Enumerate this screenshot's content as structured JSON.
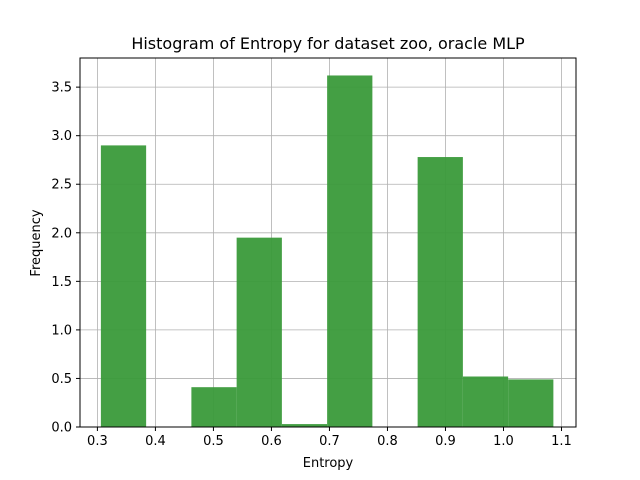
{
  "chart_data": {
    "type": "bar",
    "title": "Histogram of Entropy for dataset zoo, oracle MLP",
    "xlabel": "Entropy",
    "ylabel": "Frequency",
    "xlim": [
      0.27,
      1.125
    ],
    "ylim": [
      0.0,
      3.8
    ],
    "xticks": [
      0.3,
      0.4,
      0.5,
      0.6,
      0.7,
      0.8,
      0.9,
      1.0,
      1.1
    ],
    "xtick_labels": [
      "0.3",
      "0.4",
      "0.5",
      "0.6",
      "0.7",
      "0.8",
      "0.9",
      "1.0",
      "1.1"
    ],
    "yticks": [
      0.0,
      0.5,
      1.0,
      1.5,
      2.0,
      2.5,
      3.0,
      3.5
    ],
    "ytick_labels": [
      "0.0",
      "0.5",
      "1.0",
      "1.5",
      "2.0",
      "2.5",
      "3.0",
      "3.5"
    ],
    "grid": true,
    "bar_color": "#3a9a3a",
    "bins": [
      {
        "x0": 0.306,
        "x1": 0.384,
        "value": 2.9
      },
      {
        "x0": 0.384,
        "x1": 0.462,
        "value": 0.0
      },
      {
        "x0": 0.462,
        "x1": 0.54,
        "value": 0.41
      },
      {
        "x0": 0.54,
        "x1": 0.618,
        "value": 1.95
      },
      {
        "x0": 0.618,
        "x1": 0.696,
        "value": 0.03
      },
      {
        "x0": 0.696,
        "x1": 0.774,
        "value": 3.62
      },
      {
        "x0": 0.774,
        "x1": 0.852,
        "value": 0.0
      },
      {
        "x0": 0.852,
        "x1": 0.93,
        "value": 2.78
      },
      {
        "x0": 0.93,
        "x1": 1.008,
        "value": 0.52
      },
      {
        "x0": 1.008,
        "x1": 1.086,
        "value": 0.49
      }
    ]
  }
}
